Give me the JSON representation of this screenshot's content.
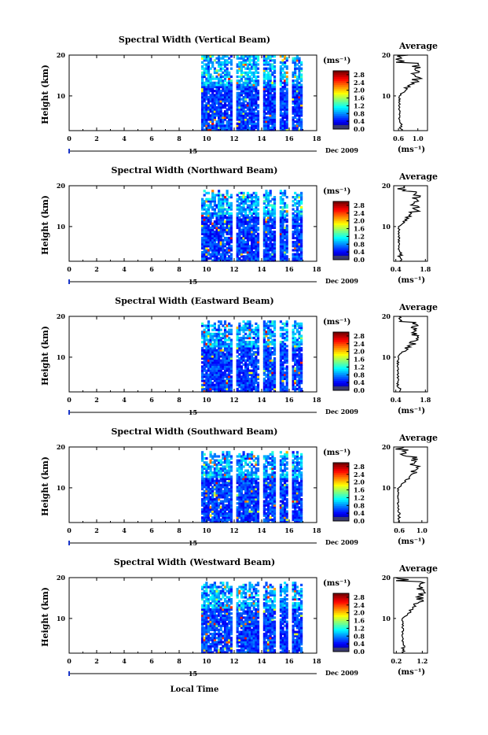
{
  "common": {
    "ylabel": "Height (km)",
    "x_ticks": [
      "0",
      "2",
      "4",
      "6",
      "8",
      "10",
      "12",
      "14",
      "16",
      "18"
    ],
    "y_ticks": [
      "20",
      "10"
    ],
    "day_label": "15",
    "month_label": "Dec 2009",
    "unit_label": "(ms⁻¹)",
    "colorbar_ticks": [
      "2.8",
      "2.4",
      "2.0",
      "1.6",
      "1.2",
      "0.8",
      "0.4",
      "0.0"
    ],
    "colorbar_ticks_west": [
      "2.8",
      "2.4",
      "2.0",
      "1.6",
      "1.2",
      "0.8",
      "0.4",
      "0.0"
    ],
    "average_title": "Average",
    "xlabel": "Local Time"
  },
  "chart_data": [
    {
      "type": "heatmap",
      "title": "Spectral Width (Vertical Beam)",
      "xlim": [
        0,
        18
      ],
      "ylim": [
        1.5,
        20
      ],
      "data_time_range": [
        9.6,
        16.9
      ],
      "gaps": [
        [
          11.85,
          12.15
        ],
        [
          13.85,
          14.1
        ],
        [
          15.0,
          15.35
        ],
        [
          15.95,
          16.15
        ]
      ],
      "colorbar": {
        "min": 0.0,
        "max": 3.0,
        "ticks": [
          2.8,
          2.4,
          2.0,
          1.6,
          1.2,
          0.8,
          0.4,
          0.0
        ]
      },
      "average": {
        "title": "Average",
        "xticks": [
          "0.6",
          "1.0"
        ],
        "xlim": [
          0.5,
          1.2
        ],
        "ylim": [
          1.5,
          20
        ],
        "xlabel": "(ms⁻¹)",
        "peak_heights": [
          14,
          17
        ],
        "base": 0.62
      }
    },
    {
      "type": "heatmap",
      "title": "Spectral Width (Northward Beam)",
      "xlim": [
        0,
        18
      ],
      "ylim": [
        1.5,
        20
      ],
      "data_time_range": [
        9.6,
        16.9
      ],
      "gaps": [
        [
          11.85,
          12.15
        ],
        [
          13.85,
          14.1
        ],
        [
          15.0,
          15.35
        ],
        [
          15.95,
          16.15
        ]
      ],
      "colorbar": {
        "min": 0.0,
        "max": 3.0,
        "ticks": [
          2.8,
          2.4,
          2.0,
          1.6,
          1.2,
          0.8,
          0.4,
          0.0
        ]
      },
      "average": {
        "title": "Average",
        "xticks": [
          "0.4",
          "1.8"
        ],
        "xlim": [
          0.3,
          1.9
        ],
        "ylim": [
          1.5,
          20
        ],
        "xlabel": "(ms⁻¹)",
        "peak_heights": [
          15,
          17.5
        ],
        "base": 0.55
      }
    },
    {
      "type": "heatmap",
      "title": "Spectral Width (Eastward Beam)",
      "xlim": [
        0,
        18
      ],
      "ylim": [
        1.5,
        20
      ],
      "data_time_range": [
        9.6,
        16.9
      ],
      "gaps": [
        [
          11.85,
          12.15
        ],
        [
          13.85,
          14.1
        ],
        [
          15.0,
          15.35
        ],
        [
          15.95,
          16.15
        ]
      ],
      "colorbar": {
        "min": 0.0,
        "max": 3.0,
        "ticks": [
          2.8,
          2.4,
          2.0,
          1.6,
          1.2,
          0.8,
          0.4,
          0.0
        ]
      },
      "average": {
        "title": "Average",
        "xticks": [
          "0.4",
          "1.8"
        ],
        "xlim": [
          0.3,
          1.9
        ],
        "ylim": [
          1.5,
          20
        ],
        "xlabel": "(ms⁻¹)",
        "peak_heights": [
          15,
          17.5
        ],
        "base": 0.5
      }
    },
    {
      "type": "heatmap",
      "title": "Spectral Width (Southward Beam)",
      "xlim": [
        0,
        18
      ],
      "ylim": [
        1.5,
        20
      ],
      "data_time_range": [
        9.6,
        16.9
      ],
      "gaps": [
        [
          11.85,
          12.15
        ],
        [
          13.85,
          14.1
        ],
        [
          15.0,
          15.35
        ],
        [
          15.95,
          16.15
        ]
      ],
      "colorbar": {
        "min": 0.0,
        "max": 3.0,
        "ticks": [
          2.8,
          2.4,
          2.0,
          1.6,
          1.2,
          0.8,
          0.4,
          0.0
        ]
      },
      "average": {
        "title": "Average",
        "xticks": [
          "0.6",
          "1.0"
        ],
        "xlim": [
          0.5,
          1.1
        ],
        "ylim": [
          1.5,
          20
        ],
        "xlabel": "(ms⁻¹)",
        "peak_heights": [
          14,
          16.5
        ],
        "base": 0.58
      }
    },
    {
      "type": "heatmap",
      "title": "Spectral Width (Westward Beam)",
      "xlim": [
        0,
        18
      ],
      "ylim": [
        1.5,
        20
      ],
      "data_time_range": [
        9.6,
        16.9
      ],
      "gaps": [
        [
          11.85,
          12.15
        ],
        [
          13.85,
          14.1
        ],
        [
          15.0,
          15.35
        ],
        [
          15.95,
          16.15
        ]
      ],
      "colorbar": {
        "min": 0.0,
        "max": 3.0,
        "ticks": [
          2.8,
          2.4,
          2.0,
          1.6,
          1.2,
          0.8,
          0.4,
          0.0
        ]
      },
      "average": {
        "title": "Average",
        "xticks": [
          "0.2",
          "1.2"
        ],
        "xlim": [
          0.1,
          1.4
        ],
        "ylim": [
          1.5,
          20
        ],
        "xlabel": "(ms⁻¹)",
        "peak_heights": [
          15,
          18
        ],
        "base": 0.45
      }
    }
  ]
}
